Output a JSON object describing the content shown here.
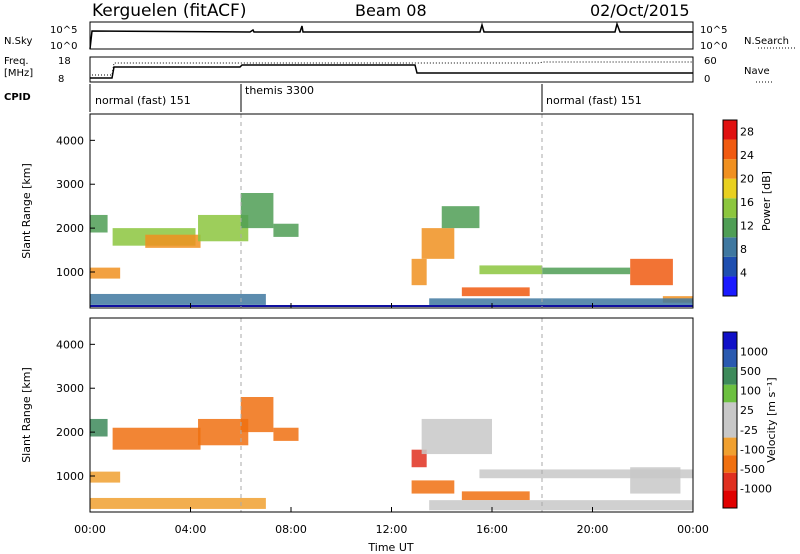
{
  "header": {
    "station": "Kerguelen (fitACF)",
    "beam": "Beam 08",
    "date": "02/Oct/2015"
  },
  "strip_labels": {
    "nsky": "N.Sky",
    "nsky_top": "10^5",
    "nsky_bottom": "10^0",
    "nsearch": "N.Search",
    "nsearch_top": "10^5",
    "nsearch_bottom": "10^0",
    "freq_line1": "Freq.",
    "freq_line2": "[MHz]",
    "freq_top": "18",
    "freq_bottom": "8",
    "nave": "Nave",
    "nave_top": "60",
    "nave_bottom": "0",
    "cpid": "CPID"
  },
  "cpid_segments": [
    {
      "label": "normal (fast) 151",
      "start_hour": 0
    },
    {
      "label": "themis 3300",
      "start_hour": 6
    },
    {
      "label": "normal (fast) 151",
      "start_hour": 18
    }
  ],
  "time_axis": {
    "label": "Time UT",
    "ticks": [
      "00:00",
      "04:00",
      "08:00",
      "12:00",
      "16:00",
      "20:00",
      "00:00"
    ]
  },
  "colors": {
    "power_scale": [
      "#1a1aff",
      "#1f4fb0",
      "#3f78a0",
      "#4f9e55",
      "#8cc63e",
      "#e8d020",
      "#f09020",
      "#f05a10",
      "#e01010"
    ],
    "velocity_scale": [
      "#1010c8",
      "#2a5ab0",
      "#3d8a5a",
      "#6cc040",
      "#c8c8c8",
      "#c8c8c8",
      "#f0a030",
      "#f07010",
      "#e03020",
      "#e00000"
    ]
  },
  "chart_data": [
    {
      "type": "heatmap",
      "title": "",
      "ylabel": "Slant Range [km]",
      "xlabel": "",
      "xlim": [
        0,
        24
      ],
      "ylim": [
        180,
        4600
      ],
      "yticks": [
        "1000",
        "2000",
        "3000",
        "4000"
      ],
      "colorbar": {
        "label": "Power [dB]",
        "ticks": [
          "4",
          "8",
          "12",
          "16",
          "20",
          "24",
          "28"
        ],
        "range": [
          0,
          30
        ]
      },
      "regions": [
        {
          "t0": 0.0,
          "t1": 1.2,
          "r0": 850,
          "r1": 1100,
          "value": 20
        },
        {
          "t0": 0.0,
          "t1": 0.7,
          "r0": 1900,
          "r1": 2300,
          "value": 12
        },
        {
          "t0": 0.9,
          "t1": 4.2,
          "r0": 1600,
          "r1": 2000,
          "value": 14
        },
        {
          "t0": 2.2,
          "t1": 4.4,
          "r0": 1550,
          "r1": 1850,
          "value": 22
        },
        {
          "t0": 4.3,
          "t1": 6.3,
          "r0": 1700,
          "r1": 2300,
          "value": 16
        },
        {
          "t0": 6.0,
          "t1": 7.3,
          "r0": 2000,
          "r1": 2800,
          "value": 12
        },
        {
          "t0": 7.3,
          "t1": 8.3,
          "r0": 1800,
          "r1": 2100,
          "value": 10
        },
        {
          "t0": 0.0,
          "t1": 7.0,
          "r0": 250,
          "r1": 500,
          "value": 8
        },
        {
          "t0": 12.8,
          "t1": 13.4,
          "r0": 700,
          "r1": 1300,
          "value": 22
        },
        {
          "t0": 13.2,
          "t1": 14.5,
          "r0": 1300,
          "r1": 2000,
          "value": 20
        },
        {
          "t0": 14.0,
          "t1": 15.5,
          "r0": 2000,
          "r1": 2500,
          "value": 12
        },
        {
          "t0": 14.8,
          "t1": 17.5,
          "r0": 450,
          "r1": 650,
          "value": 26
        },
        {
          "t0": 15.5,
          "t1": 18.0,
          "r0": 950,
          "r1": 1150,
          "value": 14
        },
        {
          "t0": 18.0,
          "t1": 21.5,
          "r0": 950,
          "r1": 1100,
          "value": 12
        },
        {
          "t0": 21.5,
          "t1": 23.2,
          "r0": 700,
          "r1": 1300,
          "value": 26
        },
        {
          "t0": 22.8,
          "t1": 24.0,
          "r0": 300,
          "r1": 450,
          "value": 20
        },
        {
          "t0": 13.5,
          "t1": 24.0,
          "r0": 220,
          "r1": 400,
          "value": 8
        }
      ]
    },
    {
      "type": "heatmap",
      "title": "",
      "ylabel": "Slant Range [km]",
      "xlabel": "Time UT",
      "xlim": [
        0,
        24
      ],
      "ylim": [
        180,
        4600
      ],
      "yticks": [
        "1000",
        "2000",
        "3000",
        "4000"
      ],
      "colorbar": {
        "label": "Velocity [m s⁻¹]",
        "ticks": [
          "1000",
          "500",
          "100",
          "25",
          "-25",
          "-100",
          "-500",
          "-1000"
        ]
      },
      "regions": [
        {
          "t0": 0.0,
          "t1": 1.2,
          "r0": 850,
          "r1": 1100,
          "value": -100
        },
        {
          "t0": 0.0,
          "t1": 0.7,
          "r0": 1900,
          "r1": 2300,
          "value": 100
        },
        {
          "t0": 0.9,
          "t1": 4.4,
          "r0": 1600,
          "r1": 2100,
          "value": -300
        },
        {
          "t0": 4.3,
          "t1": 6.3,
          "r0": 1700,
          "r1": 2300,
          "value": -500
        },
        {
          "t0": 6.0,
          "t1": 7.3,
          "r0": 2000,
          "r1": 2800,
          "value": -300
        },
        {
          "t0": 7.3,
          "t1": 8.3,
          "r0": 1800,
          "r1": 2100,
          "value": -200
        },
        {
          "t0": 0.0,
          "t1": 7.0,
          "r0": 250,
          "r1": 500,
          "value": -50
        },
        {
          "t0": 12.8,
          "t1": 13.4,
          "r0": 1200,
          "r1": 1600,
          "value": -800
        },
        {
          "t0": 12.8,
          "t1": 14.5,
          "r0": 600,
          "r1": 900,
          "value": -300
        },
        {
          "t0": 13.2,
          "t1": 16.0,
          "r0": 1500,
          "r1": 2300,
          "value": 0
        },
        {
          "t0": 14.8,
          "t1": 17.5,
          "r0": 450,
          "r1": 650,
          "value": -400
        },
        {
          "t0": 15.5,
          "t1": 24.0,
          "r0": 950,
          "r1": 1150,
          "value": 0
        },
        {
          "t0": 21.5,
          "t1": 23.5,
          "r0": 600,
          "r1": 1200,
          "value": 0
        },
        {
          "t0": 13.5,
          "t1": 24.0,
          "r0": 220,
          "r1": 450,
          "value": 0
        }
      ]
    }
  ]
}
